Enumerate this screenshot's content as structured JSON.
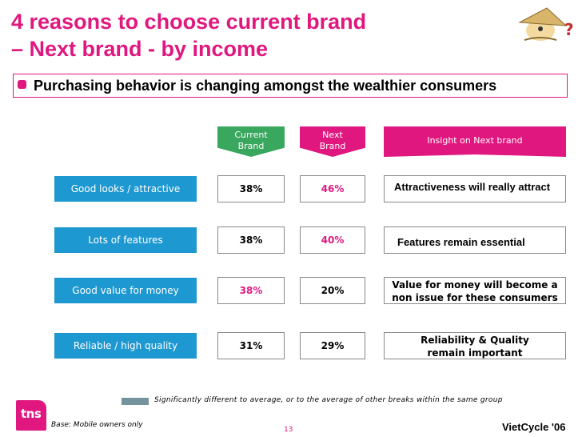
{
  "title": {
    "line1": "4 reasons to choose current brand",
    "line2": "– Next brand - by income"
  },
  "subtitle": "Purchasing behavior is changing amongst the wealthier consumers",
  "headers": {
    "current": [
      "Current",
      "Brand"
    ],
    "next": [
      "Next",
      "Brand"
    ],
    "insight": "Insight on Next brand"
  },
  "rows": [
    {
      "label": "Good looks / attractive",
      "current": "38%",
      "next": "46%",
      "insight": [
        "Attractiveness will really attract"
      ]
    },
    {
      "label": "Lots of features",
      "current": "38%",
      "next": "40%",
      "insight": [
        "Features remain essential"
      ]
    },
    {
      "label": "Good value for money",
      "current": "38%",
      "next": "20%",
      "insight": [
        "Value for money will become a",
        "non issue for these consumers"
      ]
    },
    {
      "label": "Reliable / high quality",
      "current": "31%",
      "next": "29%",
      "insight": [
        "Reliability & Quality",
        "remain important"
      ]
    }
  ],
  "legend": "Significantly different to average, or to the average of other breaks within the same group",
  "footer": {
    "logo": "tns",
    "base": "Base: Mobile owners only",
    "page": "13",
    "brand": "VietCycle '06"
  },
  "colors": {
    "accent": "#e0177f",
    "label_blue": "#1e98d0",
    "current_green": "#3aa75f"
  }
}
